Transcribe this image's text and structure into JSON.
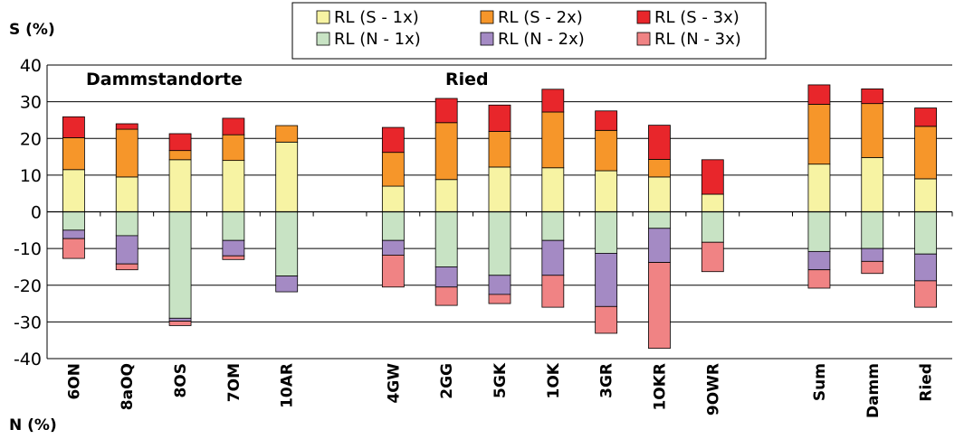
{
  "chart_data": {
    "type": "bar",
    "stacked": true,
    "ylabel_top": "S (%)",
    "ylabel_bottom": "N (%)",
    "ylim": [
      -40,
      40
    ],
    "yticks": [
      40,
      30,
      20,
      10,
      0,
      -10,
      -20,
      -30,
      -40
    ],
    "grid": true,
    "legend_position": "top-center",
    "group_labels": [
      {
        "text": "Dammstandorte",
        "after_category": "6ON"
      },
      {
        "text": "Ried",
        "after_category": "4GW"
      }
    ],
    "categories": [
      "6ON",
      "8aOQ",
      "8OS",
      "7OM",
      "10AR",
      "",
      "4GW",
      "2GG",
      "5GK",
      "1OK",
      "3GR",
      "1OKR",
      "9OWR",
      "",
      "Sum",
      "Damm",
      "Ried"
    ],
    "series": [
      {
        "name": "RL (S - 1x)",
        "color": "#f7f3a3",
        "side": "S",
        "values": [
          11.5,
          9.5,
          14.2,
          14.0,
          19.0,
          null,
          7.0,
          8.8,
          12.2,
          12.0,
          11.2,
          9.5,
          4.8,
          null,
          13.0,
          14.8,
          9.0
        ]
      },
      {
        "name": "RL (S - 2x)",
        "color": "#f6962a",
        "side": "S",
        "values": [
          8.7,
          13.0,
          2.5,
          7.0,
          4.5,
          null,
          9.2,
          15.5,
          9.7,
          15.2,
          11.0,
          4.8,
          0.0,
          null,
          16.3,
          14.7,
          14.3
        ]
      },
      {
        "name": "RL (S - 3x)",
        "color": "#e8262b",
        "side": "S",
        "values": [
          5.7,
          1.5,
          4.6,
          4.5,
          0.0,
          null,
          6.8,
          6.6,
          7.2,
          6.2,
          5.3,
          9.3,
          9.4,
          null,
          5.3,
          4.0,
          5.0
        ]
      },
      {
        "name": "RL (N - 1x)",
        "color": "#c8e3c4",
        "side": "N",
        "values": [
          -5.0,
          -6.5,
          -29.0,
          -7.8,
          -17.5,
          null,
          -7.8,
          -15.0,
          -17.3,
          -7.8,
          -11.3,
          -4.5,
          -8.3,
          null,
          -10.8,
          -10.0,
          -11.5
        ]
      },
      {
        "name": "RL (N - 2x)",
        "color": "#a48ac4",
        "side": "N",
        "values": [
          -2.3,
          -7.7,
          -0.8,
          -4.2,
          -4.3,
          null,
          -4.0,
          -5.5,
          -5.2,
          -9.5,
          -14.5,
          -9.3,
          0.0,
          null,
          -5.0,
          -3.5,
          -7.3
        ]
      },
      {
        "name": "RL (N - 3x)",
        "color": "#f08384",
        "side": "N",
        "values": [
          -5.4,
          -1.6,
          -1.2,
          -1.0,
          0.0,
          null,
          -8.7,
          -5.0,
          -2.5,
          -8.7,
          -7.3,
          -23.4,
          -8.0,
          null,
          -5.0,
          -3.3,
          -7.2
        ]
      }
    ]
  }
}
